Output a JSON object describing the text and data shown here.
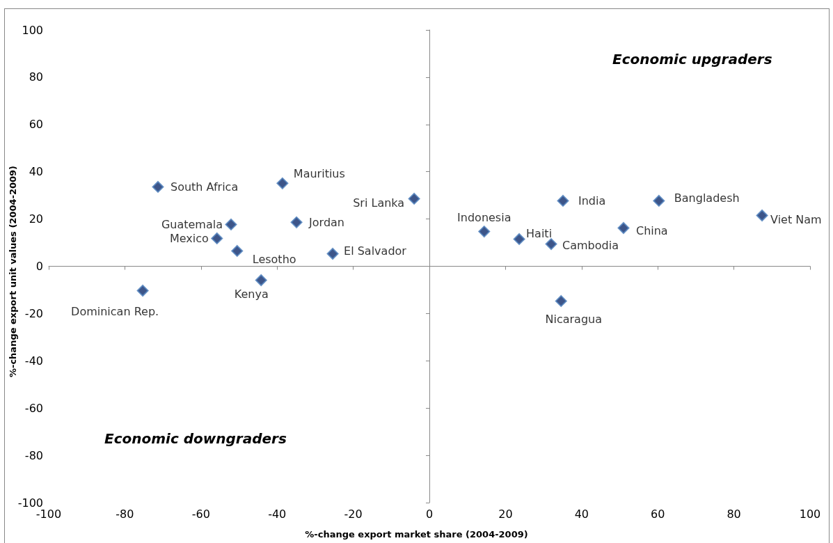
{
  "chart_data": {
    "type": "scatter",
    "xlabel": "%-change export market share (2004-2009)",
    "ylabel": "%-change export unit values (2004-2009)",
    "x": [
      -71.3,
      -38.6,
      -4.0,
      -52.1,
      -34.9,
      -55.8,
      -50.5,
      -25.4,
      -44.2,
      -75.3,
      35.1,
      60.3,
      87.4,
      14.4,
      23.6,
      32.0,
      51.0,
      34.6
    ],
    "values": [
      33.6,
      35.1,
      28.6,
      17.7,
      18.6,
      11.8,
      6.5,
      5.3,
      -5.9,
      -10.3,
      27.7,
      27.7,
      21.5,
      14.7,
      11.5,
      9.4,
      16.2,
      -14.7
    ],
    "color": "#0d2a6b",
    "marker": "diamond",
    "xlim": [
      -100,
      100
    ],
    "xticks": [
      -100,
      -80,
      -60,
      -40,
      -20,
      0,
      20,
      40,
      60,
      80,
      100
    ],
    "ylim": [
      -100,
      100
    ],
    "yticks": [
      -100,
      -80,
      -60,
      -40,
      -20,
      0,
      20,
      40,
      60,
      80,
      100
    ],
    "annotations": [
      {
        "text": "South Africa",
        "x": -71.3,
        "y": 33.6
      },
      {
        "text": "Mauritius",
        "x": -38.6,
        "y": 35.1
      },
      {
        "text": "Sri Lanka",
        "x": -4.0,
        "y": 28.6
      },
      {
        "text": "Guatemala",
        "x": -52.1,
        "y": 17.7
      },
      {
        "text": "Jordan",
        "x": -34.9,
        "y": 18.6
      },
      {
        "text": "Mexico",
        "x": -55.8,
        "y": 11.8
      },
      {
        "text": "Lesotho",
        "x": -50.5,
        "y": 6.5
      },
      {
        "text": "El Salvador",
        "x": -25.4,
        "y": 5.3
      },
      {
        "text": "Kenya",
        "x": -44.2,
        "y": -5.9
      },
      {
        "text": "Dominican Rep.",
        "x": -75.3,
        "y": -10.3
      },
      {
        "text": "India",
        "x": 35.1,
        "y": 27.7
      },
      {
        "text": "Bangladesh",
        "x": 60.3,
        "y": 27.7
      },
      {
        "text": "Viet Nam",
        "x": 87.4,
        "y": 21.5
      },
      {
        "text": "Indonesia",
        "x": 14.4,
        "y": 14.7
      },
      {
        "text": "Haiti",
        "x": 23.6,
        "y": 11.5
      },
      {
        "text": "Cambodia",
        "x": 32.0,
        "y": 9.4
      },
      {
        "text": "China",
        "x": 51.0,
        "y": 16.2
      },
      {
        "text": "Nicaragua",
        "x": 34.6,
        "y": -14.7
      },
      "Economic upgraders",
      "Economic downgraders"
    ]
  }
}
